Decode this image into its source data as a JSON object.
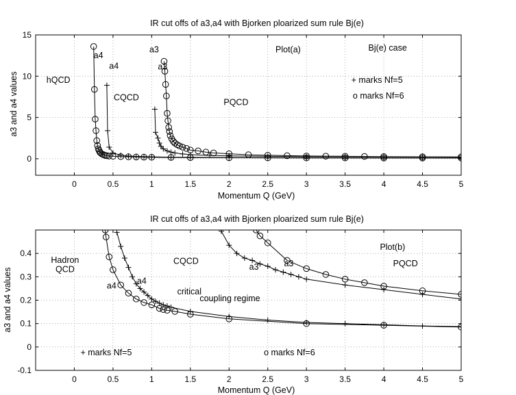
{
  "chart_data": [
    {
      "type": "line",
      "title": "IR cut offs of a3,a4 with Bjorken ploarized sum rule Bj(e)",
      "xlabel": "Momentum Q (GeV)",
      "ylabel": "a3 and a4 values",
      "xlim": [
        -0.5,
        5
      ],
      "ylim": [
        -2,
        15
      ],
      "xticks": [
        0,
        0.5,
        1,
        1.5,
        2,
        2.5,
        3,
        3.5,
        4,
        4.5,
        5
      ],
      "yticks": [
        0,
        5,
        10,
        15
      ],
      "grid": true,
      "series": [
        {
          "name": "a4 Nf=5",
          "marker": "+",
          "x": [
            0.42,
            0.43,
            0.45,
            0.5,
            0.6,
            0.7,
            0.8,
            0.9,
            1.0,
            1.25,
            1.5,
            2.0,
            2.5,
            3.0,
            3.5,
            4.0,
            4.5,
            5.0
          ],
          "values": [
            8.9,
            3.4,
            1.4,
            0.7,
            0.42,
            0.33,
            0.28,
            0.25,
            0.23,
            0.19,
            0.17,
            0.14,
            0.13,
            0.12,
            0.11,
            0.1,
            0.09,
            0.09
          ]
        },
        {
          "name": "a4 Nf=6",
          "marker": "o",
          "x": [
            0.25,
            0.26,
            0.27,
            0.28,
            0.29,
            0.3,
            0.31,
            0.32,
            0.33,
            0.34,
            0.36,
            0.38,
            0.4,
            0.42,
            0.45,
            0.5,
            0.6,
            0.7,
            0.8,
            0.9,
            1.0,
            1.25,
            1.5,
            2.0,
            2.5,
            3.0,
            3.5,
            4.0,
            4.5,
            5.0
          ],
          "values": [
            13.6,
            8.4,
            4.8,
            3.4,
            2.2,
            1.6,
            1.2,
            1.0,
            0.8,
            0.7,
            0.55,
            0.48,
            0.4,
            0.37,
            0.33,
            0.3,
            0.26,
            0.23,
            0.21,
            0.19,
            0.18,
            0.16,
            0.14,
            0.12,
            0.11,
            0.1,
            0.1,
            0.09,
            0.09,
            0.08
          ]
        },
        {
          "name": "a3 Nf=5",
          "marker": "+",
          "x": [
            1.04,
            1.05,
            1.08,
            1.1,
            1.12,
            1.15,
            1.2,
            1.25,
            1.3,
            1.4,
            1.5,
            1.75,
            2.0,
            2.5,
            3.0,
            3.5,
            4.0,
            4.5,
            5.0
          ],
          "values": [
            6.0,
            3.2,
            2.5,
            1.9,
            1.5,
            1.2,
            0.95,
            0.8,
            0.7,
            0.58,
            0.5,
            0.4,
            0.34,
            0.29,
            0.26,
            0.24,
            0.23,
            0.22,
            0.2
          ]
        },
        {
          "name": "a3 Nf=6",
          "marker": "o",
          "x": [
            1.16,
            1.17,
            1.18,
            1.19,
            1.2,
            1.21,
            1.22,
            1.23,
            1.24,
            1.26,
            1.28,
            1.3,
            1.33,
            1.36,
            1.4,
            1.45,
            1.5,
            1.6,
            1.7,
            1.8,
            2.0,
            2.25,
            2.5,
            2.75,
            3.0,
            3.25,
            3.5,
            3.75,
            4.0,
            4.5,
            5.0
          ],
          "values": [
            11.8,
            10.6,
            9.0,
            7.6,
            5.5,
            4.6,
            3.8,
            3.3,
            2.8,
            2.4,
            2.1,
            1.9,
            1.7,
            1.55,
            1.4,
            1.25,
            1.05,
            0.95,
            0.8,
            0.7,
            0.6,
            0.48,
            0.42,
            0.37,
            0.33,
            0.31,
            0.3,
            0.28,
            0.26,
            0.24,
            0.22
          ]
        }
      ],
      "curve_labels": [
        {
          "text": "a4",
          "x": 0.25,
          "y": 12.2
        },
        {
          "text": "a4",
          "x": 0.45,
          "y": 10.9
        },
        {
          "text": "a3",
          "x": 0.97,
          "y": 12.9
        },
        {
          "text": "a3",
          "x": 1.08,
          "y": 10.8
        }
      ],
      "annotations": [
        {
          "text": "hQCD",
          "x": -0.36,
          "y": 9.2
        },
        {
          "text": "CQCD",
          "x": 0.51,
          "y": 7.1
        },
        {
          "text": "PQCD",
          "x": 1.93,
          "y": 6.5
        },
        {
          "text": "Plot(a)",
          "x": 2.6,
          "y": 12.9
        },
        {
          "text": "Bj(e) case",
          "x": 3.8,
          "y": 13.1
        },
        {
          "text": "+ marks Nf=5",
          "x": 3.58,
          "y": 9.2
        },
        {
          "text": "o marks Nf=6",
          "x": 3.6,
          "y": 7.3
        }
      ]
    },
    {
      "type": "line",
      "title": "IR cut offs of a3,a4 with Bjorken ploarized sum rule Bj(e)",
      "xlabel": "Momentum Q (GeV)",
      "ylabel": "a3 and a4 values",
      "xlim": [
        -0.5,
        5
      ],
      "ylim": [
        -0.1,
        0.5
      ],
      "xticks": [
        0,
        0.5,
        1,
        1.5,
        2,
        2.5,
        3,
        3.5,
        4,
        4.5,
        5
      ],
      "yticks": [
        -0.1,
        0,
        0.1,
        0.2,
        0.3,
        0.4
      ],
      "grid": true,
      "series": [
        {
          "name": "a4 Nf=5",
          "marker": "+",
          "x": [
            0.55,
            0.6,
            0.65,
            0.7,
            0.75,
            0.8,
            0.85,
            0.9,
            0.95,
            1.0,
            1.05,
            1.1,
            1.15,
            1.2,
            1.25,
            1.5,
            2.0,
            2.5,
            3.0,
            3.5,
            4.0,
            4.5,
            5.0
          ],
          "values": [
            0.49,
            0.43,
            0.38,
            0.34,
            0.3,
            0.27,
            0.25,
            0.235,
            0.22,
            0.205,
            0.195,
            0.187,
            0.18,
            0.175,
            0.17,
            0.152,
            0.13,
            0.115,
            0.105,
            0.1,
            0.095,
            0.09,
            0.087
          ]
        },
        {
          "name": "a4 Nf=6",
          "marker": "o",
          "x": [
            0.4,
            0.41,
            0.45,
            0.5,
            0.6,
            0.7,
            0.8,
            0.9,
            1.0,
            1.1,
            1.15,
            1.2,
            1.3,
            1.5,
            2.0,
            3.0,
            4.0,
            5.0
          ],
          "values": [
            0.5,
            0.47,
            0.385,
            0.33,
            0.265,
            0.23,
            0.205,
            0.19,
            0.18,
            0.165,
            0.16,
            0.157,
            0.152,
            0.14,
            0.12,
            0.1,
            0.093,
            0.085
          ]
        },
        {
          "name": "a3 Nf=5",
          "marker": "+",
          "x": [
            1.9,
            2.0,
            2.1,
            2.2,
            2.3,
            2.4,
            2.5,
            2.6,
            2.7,
            2.8,
            2.9,
            3.0,
            3.5,
            4.0,
            4.5,
            5.0
          ],
          "values": [
            0.495,
            0.435,
            0.4,
            0.38,
            0.37,
            0.355,
            0.345,
            0.33,
            0.32,
            0.31,
            0.3,
            0.29,
            0.265,
            0.245,
            0.225,
            0.205
          ]
        },
        {
          "name": "a3 Nf=6",
          "marker": "o",
          "x": [
            2.35,
            2.4,
            2.5,
            2.75,
            3.0,
            3.25,
            3.5,
            3.75,
            4.0,
            4.5,
            5.0
          ],
          "values": [
            0.5,
            0.475,
            0.445,
            0.37,
            0.335,
            0.31,
            0.29,
            0.275,
            0.26,
            0.24,
            0.225
          ]
        }
      ],
      "curve_labels": [
        {
          "text": "a4",
          "x": 0.42,
          "y": 0.25
        },
        {
          "text": "a4",
          "x": 0.81,
          "y": 0.27
        },
        {
          "text": "a3",
          "x": 2.26,
          "y": 0.33
        },
        {
          "text": "a3",
          "x": 2.71,
          "y": 0.345
        }
      ],
      "annotations": [
        {
          "text": "Hadron",
          "x": -0.12,
          "y": 0.36,
          "anchor": "middle"
        },
        {
          "text": "QCD",
          "x": -0.12,
          "y": 0.32,
          "anchor": "middle"
        },
        {
          "text": "CQCD",
          "x": 1.28,
          "y": 0.355
        },
        {
          "text": "critical",
          "x": 1.33,
          "y": 0.225
        },
        {
          "text": "coupling regime",
          "x": 1.62,
          "y": 0.195
        },
        {
          "text": "Plot(b)",
          "x": 3.95,
          "y": 0.415
        },
        {
          "text": "PQCD",
          "x": 4.12,
          "y": 0.345
        },
        {
          "text": "+ marks Nf=5",
          "x": 0.08,
          "y": -0.035
        },
        {
          "text": "o marks Nf=6",
          "x": 2.45,
          "y": -0.035
        }
      ]
    }
  ]
}
